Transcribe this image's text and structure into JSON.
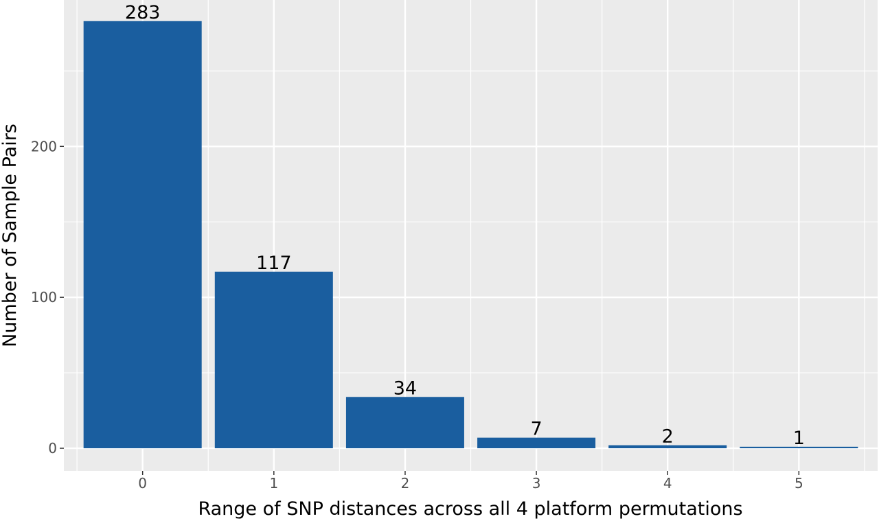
{
  "chart_data": {
    "type": "bar",
    "categories": [
      "0",
      "1",
      "2",
      "3",
      "4",
      "5"
    ],
    "values": [
      283,
      117,
      34,
      7,
      2,
      1
    ],
    "data_labels": [
      "283",
      "117",
      "34",
      "7",
      "2",
      "1"
    ],
    "xlabel": "Range of SNP distances across all 4 platform permutations",
    "ylabel": "Number of Sample Pairs",
    "ylim": [
      -15,
      297
    ],
    "y_ticks": [
      0,
      100,
      200
    ],
    "y_tick_labels": [
      "0",
      "100",
      "200"
    ],
    "grid": true,
    "legend": "none",
    "colors": {
      "bar": "#1a5e9f",
      "panel": "#ebebeb",
      "grid": "#ffffff"
    }
  }
}
